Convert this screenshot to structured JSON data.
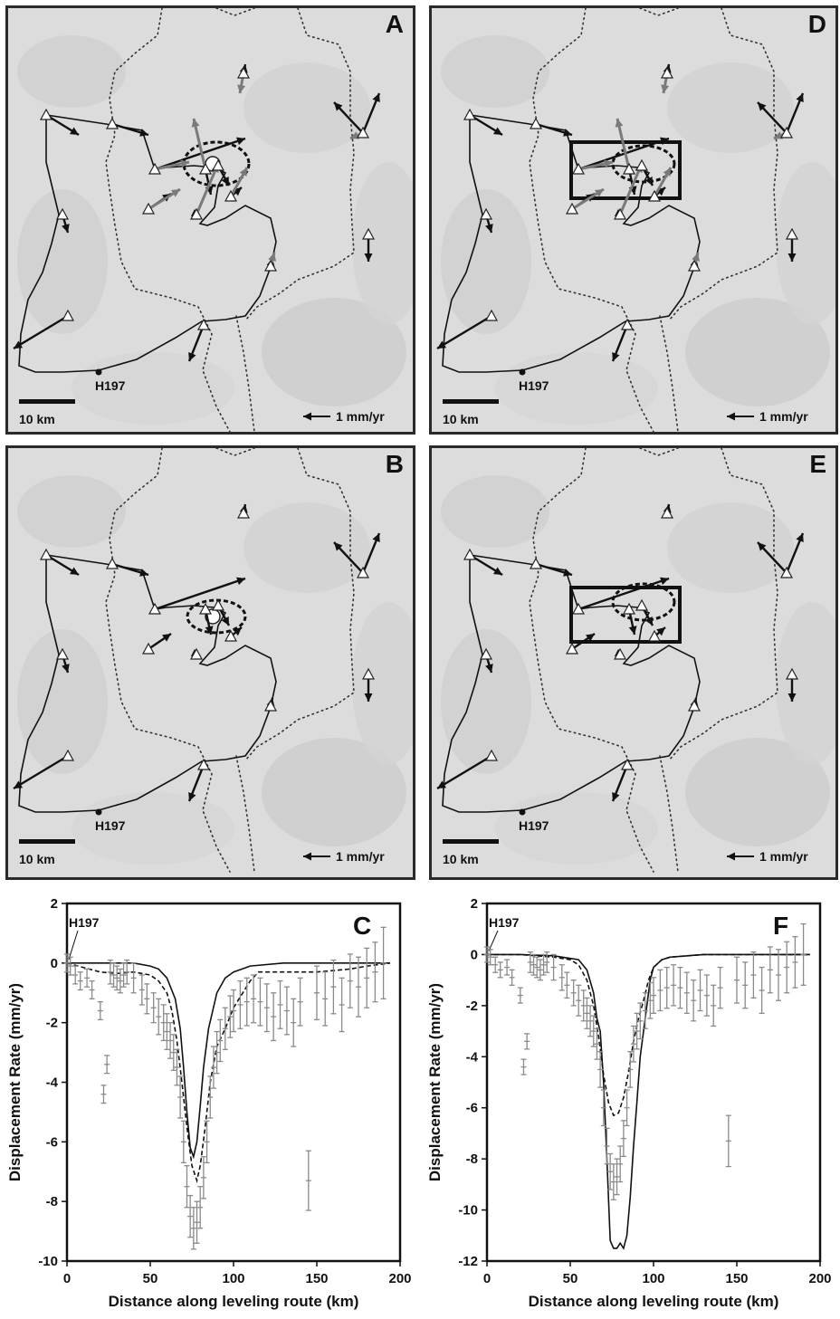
{
  "panels": {
    "A": {
      "letter": "A",
      "benchmark": "H197",
      "scale_label": "10 km",
      "rate_label": "1 mm/yr"
    },
    "B": {
      "letter": "B",
      "benchmark": "H197",
      "scale_label": "10 km",
      "rate_label": "1 mm/yr"
    },
    "D": {
      "letter": "D",
      "benchmark": "H197",
      "scale_label": "10 km",
      "rate_label": "1 mm/yr"
    },
    "E": {
      "letter": "E",
      "benchmark": "H197",
      "scale_label": "10 km",
      "rate_label": "1 mm/yr"
    }
  },
  "colors": {
    "observed": "#111111",
    "model": "#777777",
    "errorbars": "#8a8a8a",
    "terrain": "#dcdcdc"
  },
  "chart_data": [
    {
      "panel": "C",
      "type": "line",
      "xlabel": "Distance along leveling route (km)",
      "ylabel": "Displacement Rate (mm/yr)",
      "xlim": [
        0,
        200
      ],
      "ylim": [
        -10,
        2
      ],
      "xticks": [
        0,
        50,
        100,
        150,
        200
      ],
      "yticks": [
        2,
        0,
        -2,
        -4,
        -6,
        -8,
        -10
      ],
      "annotation": "H197",
      "series": [
        {
          "style": "solid",
          "x": [
            0,
            20,
            40,
            50,
            55,
            60,
            65,
            68,
            70,
            72,
            74,
            76,
            78,
            80,
            82,
            85,
            90,
            95,
            100,
            110,
            130,
            150,
            170,
            190,
            194
          ],
          "y": [
            0,
            0,
            0,
            -0.1,
            -0.2,
            -0.5,
            -1.2,
            -2.2,
            -3.5,
            -5,
            -6.2,
            -6.5,
            -6,
            -4.8,
            -3.5,
            -2.2,
            -1,
            -0.5,
            -0.3,
            -0.1,
            0,
            0,
            0,
            0,
            0
          ]
        },
        {
          "style": "dashed",
          "x": [
            0,
            20,
            30,
            40,
            50,
            55,
            60,
            63,
            66,
            69,
            72,
            75,
            78,
            80,
            83,
            86,
            90,
            95,
            100,
            110,
            115,
            130,
            150,
            170,
            180,
            194
          ],
          "y": [
            0,
            -0.3,
            -0.35,
            -0.3,
            -0.4,
            -0.6,
            -1,
            -1.6,
            -2.6,
            -4,
            -5.5,
            -6.8,
            -7.3,
            -6.8,
            -5.5,
            -4,
            -2.8,
            -2.2,
            -1.5,
            -0.6,
            -0.3,
            -0.3,
            -0.3,
            -0.2,
            -0.1,
            0
          ]
        },
        {
          "style": "errorbars",
          "x": [
            0,
            2,
            5,
            8,
            12,
            15,
            20,
            22,
            24,
            26,
            28,
            30,
            32,
            34,
            36,
            40,
            45,
            48,
            52,
            55,
            58,
            60,
            62,
            64,
            66,
            68,
            70,
            72,
            74,
            76,
            78,
            80,
            82,
            84,
            86,
            88,
            90,
            92,
            95,
            98,
            100,
            104,
            108,
            112,
            116,
            120,
            124,
            128,
            132,
            136,
            140,
            145,
            150,
            155,
            160,
            165,
            170,
            175,
            180,
            185,
            190
          ],
          "y": [
            0,
            -0.1,
            -0.4,
            -0.6,
            -0.5,
            -0.9,
            -1.6,
            -4.4,
            -3.4,
            -0.3,
            -0.4,
            -0.5,
            -0.6,
            -0.4,
            -0.3,
            -0.5,
            -0.9,
            -1.2,
            -1.5,
            -1.8,
            -2,
            -2.3,
            -2.6,
            -3,
            -3.5,
            -4.5,
            -6,
            -7.5,
            -8.5,
            -8.9,
            -8.7,
            -8.2,
            -7.2,
            -6,
            -4.5,
            -3.5,
            -3,
            -2.6,
            -2.2,
            -1.8,
            -1.6,
            -1.4,
            -1.3,
            -1.2,
            -1.3,
            -1.5,
            -1.8,
            -1.4,
            -1.6,
            -2,
            -1.3,
            -7.3,
            -1,
            -1.2,
            -0.8,
            -1.4,
            -0.6,
            -0.8,
            -0.5,
            -0.3,
            0
          ],
          "err": [
            0.3,
            0.3,
            0.3,
            0.3,
            0.3,
            0.3,
            0.3,
            0.3,
            0.3,
            0.4,
            0.4,
            0.4,
            0.4,
            0.4,
            0.4,
            0.5,
            0.5,
            0.5,
            0.5,
            0.6,
            0.6,
            0.6,
            0.6,
            0.6,
            0.6,
            0.7,
            0.7,
            0.7,
            0.7,
            0.7,
            0.7,
            0.7,
            0.7,
            0.7,
            0.7,
            0.7,
            0.7,
            0.7,
            0.7,
            0.7,
            0.7,
            0.8,
            0.8,
            0.8,
            0.8,
            0.8,
            0.8,
            0.8,
            0.8,
            0.8,
            0.8,
            1,
            0.9,
            0.9,
            0.9,
            0.9,
            0.9,
            1,
            1,
            1,
            1.2
          ]
        }
      ]
    },
    {
      "panel": "F",
      "type": "line",
      "xlabel": "Distance along leveling route (km)",
      "ylabel": "Displacement Rate (mm/yr)",
      "xlim": [
        0,
        200
      ],
      "ylim": [
        -12,
        2
      ],
      "xticks": [
        0,
        50,
        100,
        150,
        200
      ],
      "yticks": [
        2,
        0,
        -2,
        -4,
        -6,
        -8,
        -10,
        -12
      ],
      "annotation": "H197",
      "series": [
        {
          "style": "solid",
          "x": [
            0,
            20,
            40,
            55,
            60,
            64,
            66,
            68,
            70,
            72,
            74,
            76,
            78,
            80,
            82,
            84,
            86,
            88,
            90,
            92,
            95,
            98,
            100,
            105,
            110,
            130,
            150,
            170,
            194
          ],
          "y": [
            0,
            0,
            -0.05,
            -0.2,
            -0.6,
            -1.5,
            -2.5,
            -3,
            -5,
            -8,
            -11.2,
            -11.5,
            -11.5,
            -11.3,
            -11.5,
            -11,
            -9.5,
            -7.5,
            -5.8,
            -4,
            -2.5,
            -1,
            -0.5,
            -0.2,
            -0.1,
            0,
            0,
            0,
            0
          ]
        },
        {
          "style": "dashed",
          "x": [
            0,
            20,
            40,
            50,
            55,
            60,
            64,
            67,
            70,
            73,
            76,
            79,
            82,
            85,
            88,
            91,
            94,
            97,
            100,
            105,
            110,
            130,
            150,
            170,
            194
          ],
          "y": [
            0,
            0,
            -0.1,
            -0.2,
            -0.4,
            -1,
            -2,
            -3.2,
            -4.7,
            -5.8,
            -6.3,
            -6.2,
            -5.6,
            -4.6,
            -3.4,
            -2.5,
            -1.8,
            -1,
            -0.5,
            -0.2,
            -0.1,
            0,
            0,
            0,
            0
          ]
        },
        {
          "style": "errorbars",
          "x": [
            0,
            2,
            5,
            8,
            12,
            15,
            20,
            22,
            24,
            26,
            28,
            30,
            32,
            34,
            36,
            40,
            45,
            48,
            52,
            55,
            58,
            60,
            62,
            64,
            66,
            68,
            70,
            72,
            74,
            76,
            78,
            80,
            82,
            84,
            86,
            88,
            90,
            92,
            95,
            98,
            100,
            104,
            108,
            112,
            116,
            120,
            124,
            128,
            132,
            136,
            140,
            145,
            150,
            155,
            160,
            165,
            170,
            175,
            180,
            185,
            190
          ],
          "y": [
            0,
            -0.1,
            -0.4,
            -0.6,
            -0.5,
            -0.9,
            -1.6,
            -4.4,
            -3.4,
            -0.3,
            -0.4,
            -0.5,
            -0.6,
            -0.4,
            -0.3,
            -0.5,
            -0.9,
            -1.2,
            -1.5,
            -1.8,
            -2,
            -2.3,
            -2.6,
            -3,
            -3.5,
            -4.5,
            -6,
            -7.5,
            -8.5,
            -8.9,
            -8.7,
            -8.2,
            -7.2,
            -6,
            -4.5,
            -3.5,
            -3,
            -2.6,
            -2.2,
            -1.8,
            -1.6,
            -1.4,
            -1.3,
            -1.2,
            -1.3,
            -1.5,
            -1.8,
            -1.4,
            -1.6,
            -2,
            -1.3,
            -7.3,
            -1,
            -1.2,
            -0.8,
            -1.4,
            -0.6,
            -0.8,
            -0.5,
            -0.3,
            0
          ],
          "err": [
            0.3,
            0.3,
            0.3,
            0.3,
            0.3,
            0.3,
            0.3,
            0.3,
            0.3,
            0.4,
            0.4,
            0.4,
            0.4,
            0.4,
            0.4,
            0.5,
            0.5,
            0.5,
            0.5,
            0.6,
            0.6,
            0.6,
            0.6,
            0.6,
            0.6,
            0.7,
            0.7,
            0.7,
            0.7,
            0.7,
            0.7,
            0.7,
            0.7,
            0.7,
            0.7,
            0.7,
            0.7,
            0.7,
            0.7,
            0.7,
            0.7,
            0.8,
            0.8,
            0.8,
            0.8,
            0.8,
            0.8,
            0.8,
            0.8,
            0.8,
            0.8,
            1,
            0.9,
            0.9,
            0.9,
            0.9,
            0.9,
            1,
            1,
            1,
            1.2
          ]
        }
      ]
    }
  ]
}
